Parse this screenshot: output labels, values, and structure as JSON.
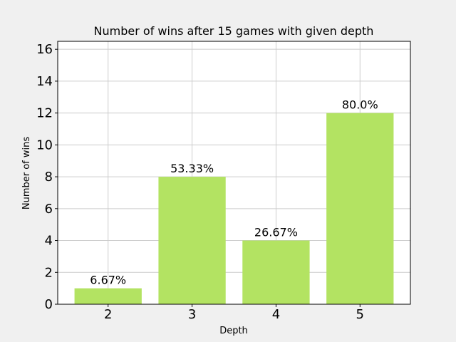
{
  "chart_data": {
    "type": "bar",
    "title": "Number of wins after 15 games with given depth",
    "xlabel": "Depth",
    "ylabel": "Number of wins",
    "categories": [
      "2",
      "3",
      "4",
      "5"
    ],
    "values": [
      1,
      8,
      4,
      12
    ],
    "data_labels": [
      "6.67%",
      "53.33%",
      "26.67%",
      "80.0%"
    ],
    "ylim": [
      0,
      16.5
    ],
    "yticks": [
      "0",
      "2",
      "4",
      "6",
      "8",
      "10",
      "12",
      "14",
      "16"
    ],
    "grid": true,
    "bar_color": "#b3e362",
    "grid_color": "#cccccc",
    "figure_background": "#f0f0f0",
    "plot_background": "#ffffff"
  }
}
